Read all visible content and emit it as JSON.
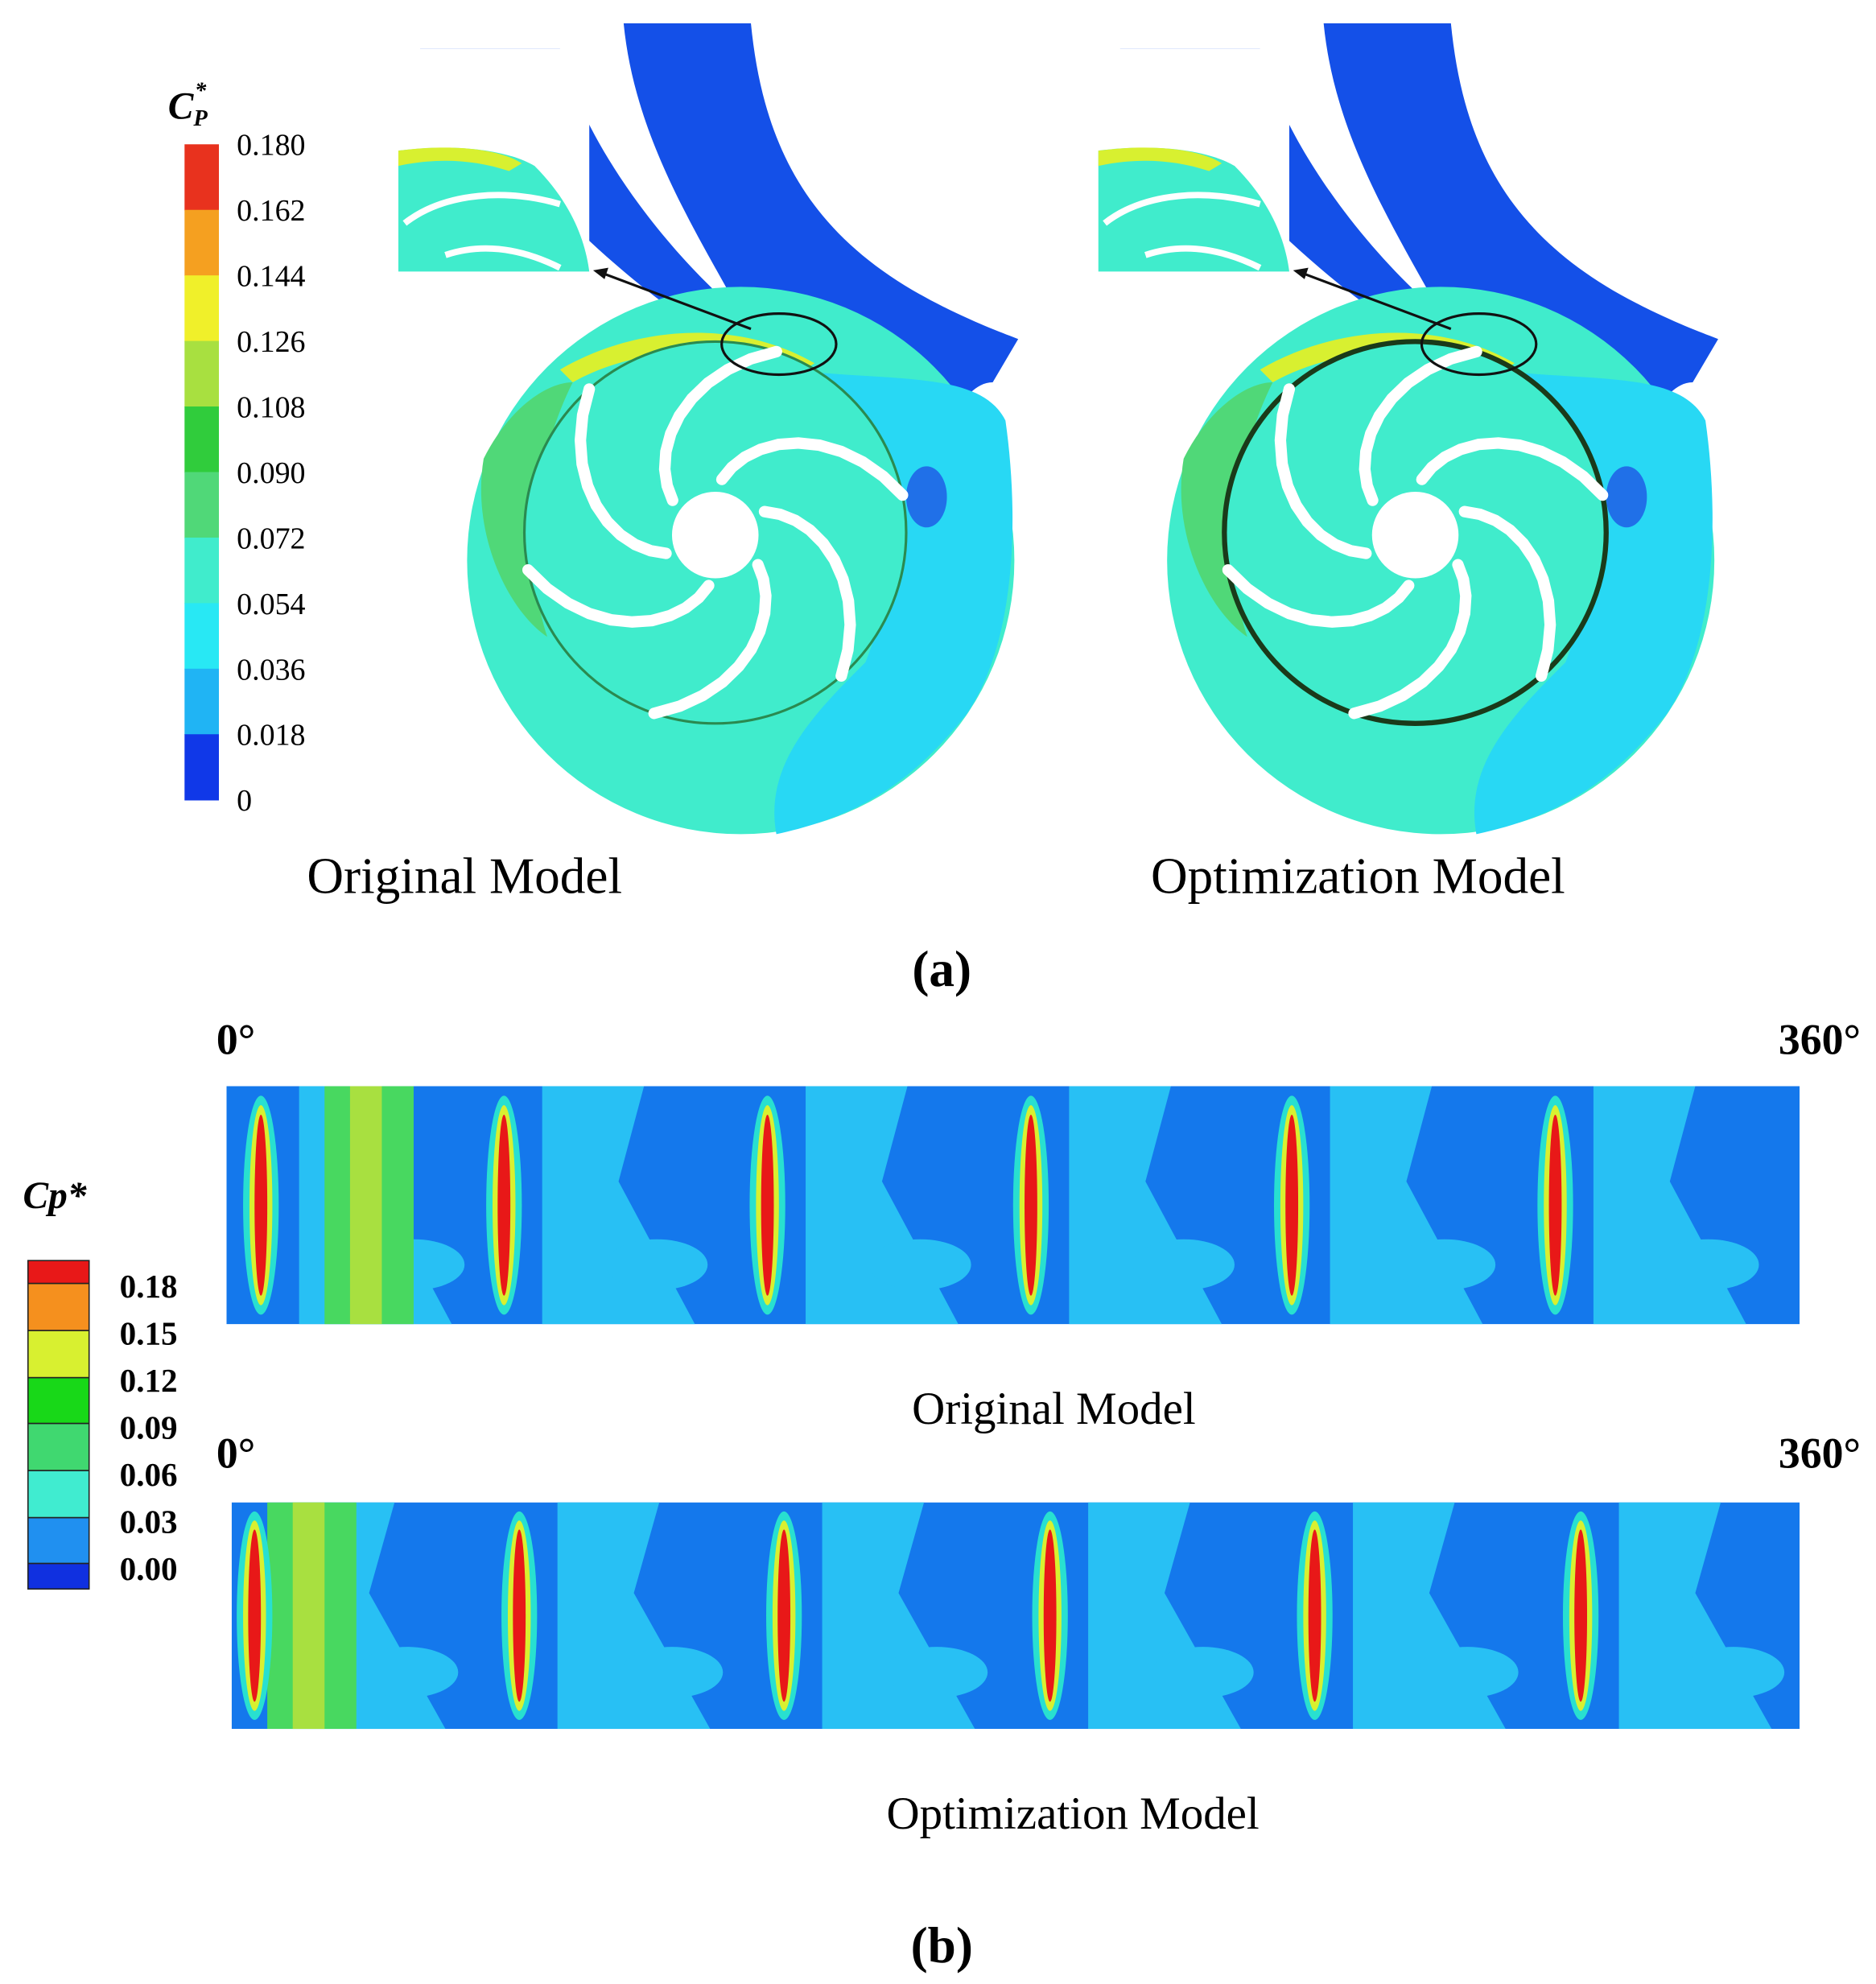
{
  "panel_a": {
    "label": "(a)",
    "colorbar": {
      "title": "C",
      "title_subscript": "P",
      "title_superscript": "*",
      "labels": [
        "0.180",
        "0.162",
        "0.144",
        "0.126",
        "0.108",
        "0.090",
        "0.072",
        "0.054",
        "0.036",
        "0.018",
        "0"
      ],
      "colors": [
        "#e8321e",
        "#f5a020",
        "#f0f02a",
        "#a8e040",
        "#30cc3c",
        "#50d878",
        "#40eccc",
        "#28e8f4",
        "#20b4f4",
        "#1038e8"
      ]
    },
    "models": [
      {
        "caption": "Original Model"
      },
      {
        "caption": "Optimization Model"
      }
    ]
  },
  "panel_b": {
    "label": "(b)",
    "colorbar": {
      "title": "Cp*",
      "labels": [
        "0.18",
        "0.15",
        "0.12",
        "0.09",
        "0.06",
        "0.03",
        "0.00"
      ],
      "colors": [
        "#e81818",
        "#f5901e",
        "#d8f030",
        "#18d818",
        "#40d870",
        "#40ecd0",
        "#2090f0",
        "#1030e0"
      ]
    },
    "strips": [
      {
        "start": "0°",
        "end": "360°",
        "caption": "Original Model"
      },
      {
        "start": "0°",
        "end": "360°",
        "caption": "Optimization Model"
      }
    ]
  }
}
